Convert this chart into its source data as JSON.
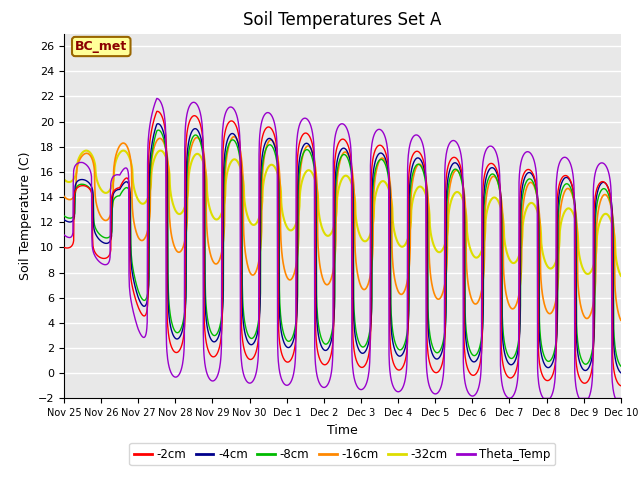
{
  "title": "Soil Temperatures Set A",
  "xlabel": "Time",
  "ylabel": "Soil Temperature (C)",
  "ylim": [
    -2,
    27
  ],
  "yticks": [
    -2,
    0,
    2,
    4,
    6,
    8,
    10,
    12,
    14,
    16,
    18,
    20,
    22,
    24,
    26
  ],
  "xtick_labels": [
    "Nov 25",
    "Nov 26",
    "Nov 27",
    "Nov 28",
    "Nov 29",
    "Nov 30",
    "Dec 1",
    "Dec 2",
    "Dec 3",
    "Dec 4",
    "Dec 5",
    "Dec 6",
    "Dec 7",
    "Dec 8",
    "Dec 9",
    "Dec 10"
  ],
  "colors": {
    "-2cm": "#ff0000",
    "-4cm": "#00008b",
    "-8cm": "#00bb00",
    "-16cm": "#ff8800",
    "-32cm": "#dddd00",
    "Theta_Temp": "#9900cc"
  },
  "annotation_text": "BC_met",
  "annotation_bg": "#ffff99",
  "annotation_border": "#996600",
  "plot_bg": "#e8e8e8",
  "figsize": [
    6.4,
    4.8
  ],
  "dpi": 100
}
